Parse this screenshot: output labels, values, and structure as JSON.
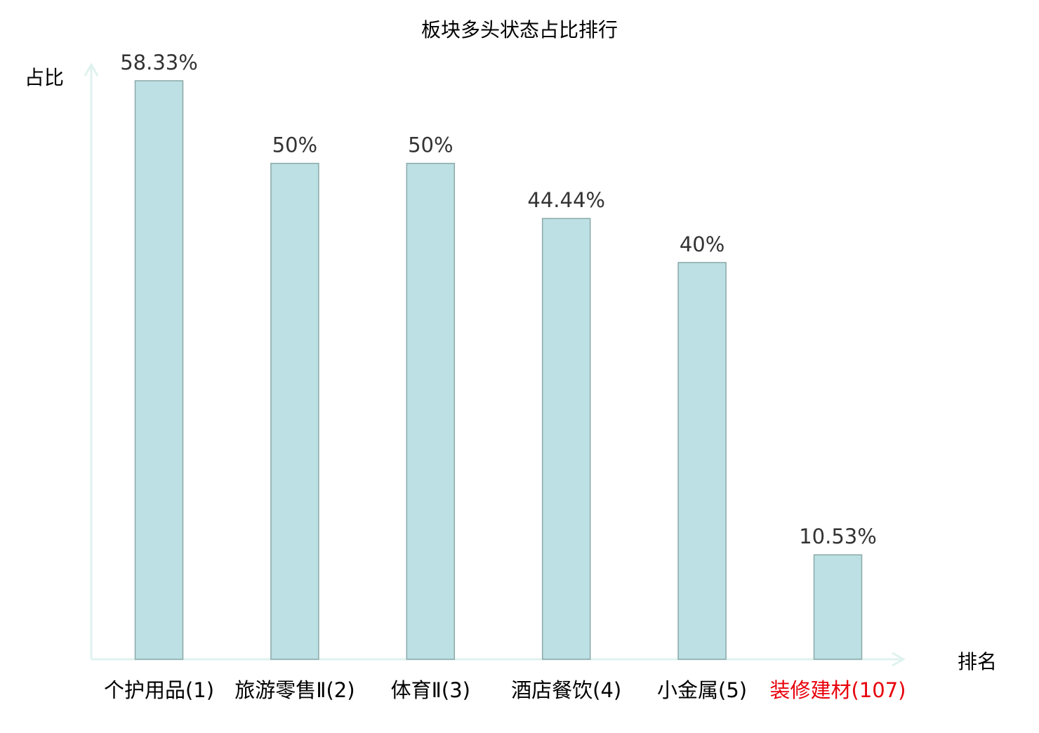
{
  "chart_data": {
    "type": "bar",
    "title": "板块多头状态占比排行",
    "ylabel": "占比",
    "xlabel": "排名",
    "categories": [
      "个护用品(1)",
      "旅游零售Ⅱ(2)",
      "体育Ⅱ(3)",
      "酒店餐饮(4)",
      "小金属(5)",
      "装修建材(107)"
    ],
    "values": [
      58.33,
      50,
      50,
      44.44,
      40,
      10.53
    ],
    "data_labels": [
      "58.33%",
      "50%",
      "50%",
      "44.44%",
      "40%",
      "10.53%"
    ],
    "highlight_index": 5,
    "ylim": [
      0,
      58.33
    ],
    "grid": false,
    "colors": {
      "bar_fill": "#bce0e3",
      "bar_stroke": "#8aa8a8",
      "axis": "#dff2ef",
      "highlight_label": "#e8000b",
      "label": "#000000",
      "value_label": "#333333"
    }
  }
}
